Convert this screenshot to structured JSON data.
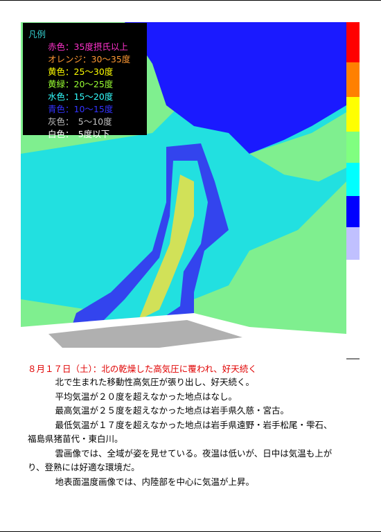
{
  "legend": {
    "title": "凡例",
    "items": [
      "赤色：35度摂氏以上",
      "オレンジ：30～35度",
      "黄色：25～30度",
      "黄緑：20～25度",
      "水色：15～20度",
      "青色：10～15度",
      "灰色：　5～10度",
      "白色：　5度以下"
    ]
  },
  "caption": "８月１７日（土）：北の乾燥した高気圧に覆われ、好天続く",
  "paragraphs": [
    [
      "　北で生まれた移動性高気圧が張り出し、好天続く。"
    ],
    [
      "　平均気温が２０度を超えなかった地点はなし。"
    ],
    [
      "　最高気温が２５度を超えなかった地点は岩手県久慈・宮古。"
    ],
    [
      "　最低気温が１７度を超えなかった地点は岩手県遠野・岩手松尾・雫石、",
      "福島県猪苗代・東白川。"
    ],
    [
      "　雲画像では、全域が姿を見せている。夜温は低いが、日中は気温も上が",
      "り、登熟には好適な環境だ。"
    ],
    [
      "　地表面温度画像では、内陸部を中心に気温が上昇。"
    ]
  ]
}
